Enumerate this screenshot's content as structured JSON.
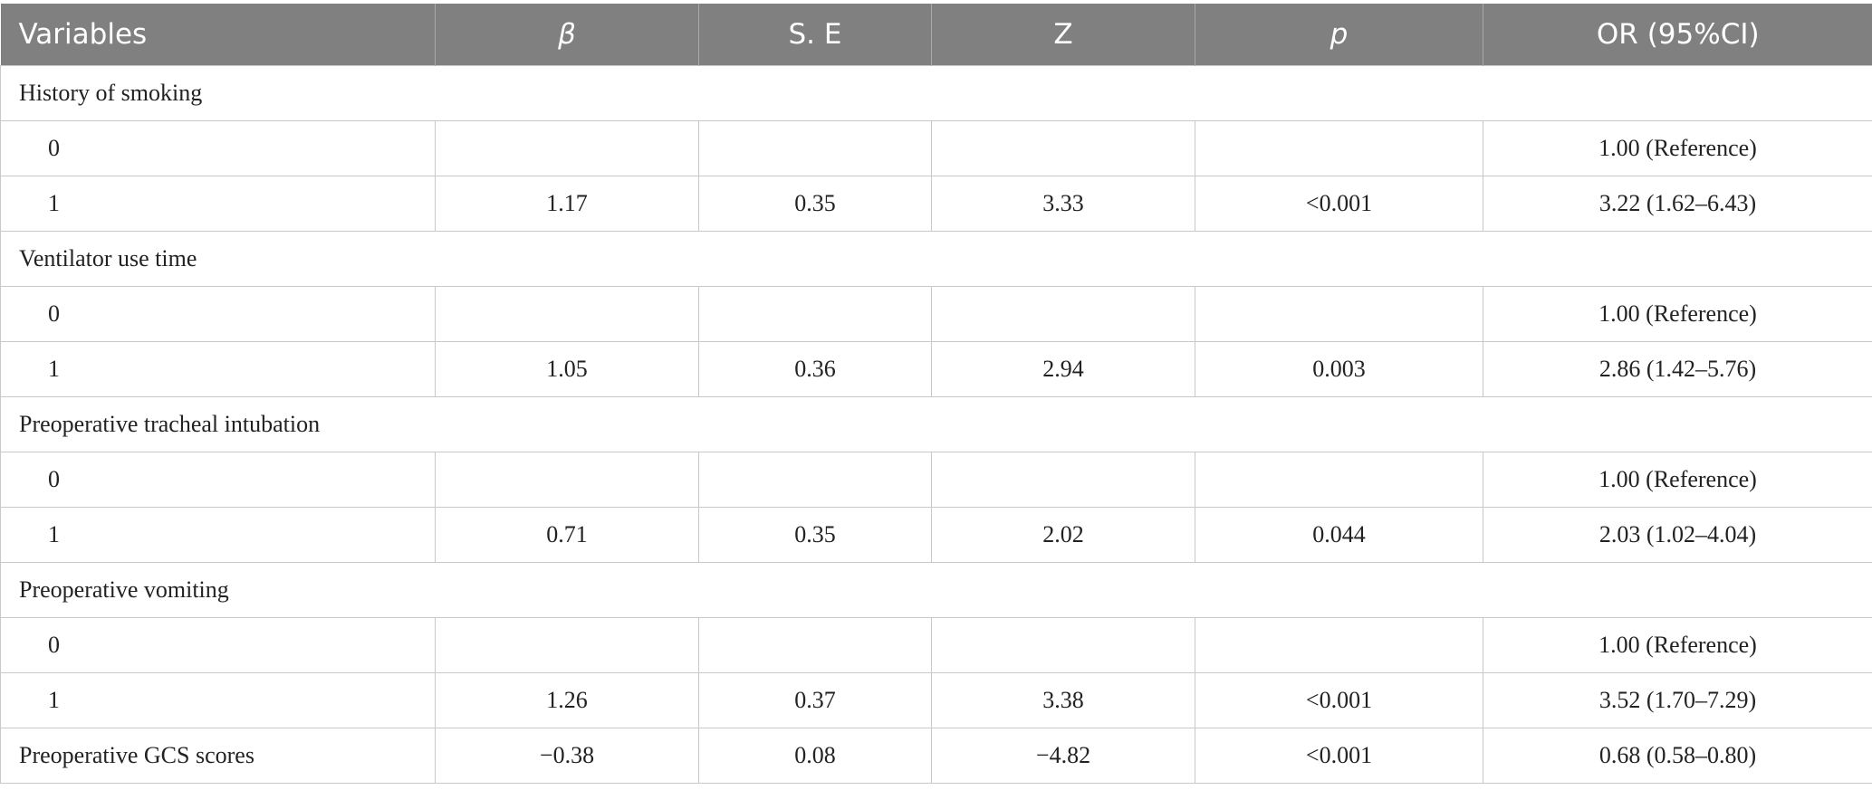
{
  "table": {
    "header": [
      "Variables",
      "β",
      "S. E",
      "Z",
      "p",
      "OR (95%CI)"
    ],
    "rows": [
      [
        "History of smoking"
      ],
      [
        "0",
        null,
        null,
        null,
        null,
        "1.00 (Reference)"
      ],
      [
        "1",
        "1.17",
        "0.35",
        "3.33",
        "<0.001",
        "3.22 (1.62–6.43)"
      ],
      [
        "Ventilator use time"
      ],
      [
        "0",
        null,
        null,
        null,
        null,
        "1.00 (Reference)"
      ],
      [
        "1",
        "1.05",
        "0.36",
        "2.94",
        "0.003",
        "2.86 (1.42–5.76)"
      ],
      [
        "Preoperative tracheal intubation"
      ],
      [
        "0",
        null,
        null,
        null,
        null,
        "1.00 (Reference)"
      ],
      [
        "1",
        "0.71",
        "0.35",
        "2.02",
        "0.044",
        "2.03 (1.02–4.04)"
      ],
      [
        "Preoperative vomiting"
      ],
      [
        "0",
        null,
        null,
        null,
        null,
        "1.00 (Reference)"
      ],
      [
        "1",
        "1.26",
        "0.37",
        "3.38",
        "<0.001",
        "3.52 (1.70–7.29)"
      ],
      [
        "Preoperative GCS scores",
        "−0.38",
        "0.08",
        "−4.82",
        "<0.001",
        "0.68 (0.58–0.80)"
      ]
    ]
  }
}
